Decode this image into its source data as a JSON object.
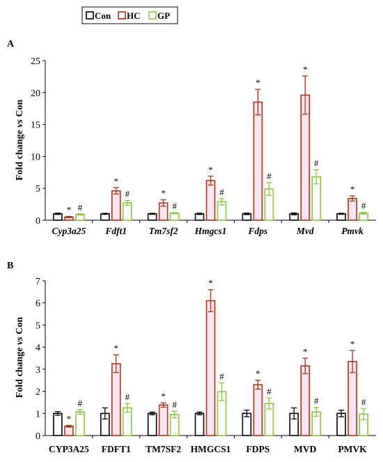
{
  "legend": {
    "items": [
      {
        "label": "Con",
        "color": "#000000"
      },
      {
        "label": "HC",
        "color": "#a0391e"
      },
      {
        "label": "GP",
        "color": "#8cc24a"
      }
    ]
  },
  "chart_data": [
    {
      "type": "bar",
      "panel_label": "A",
      "ylabel": "Fold change vs Con",
      "ylim": [
        0,
        25
      ],
      "yticks": [
        0,
        5,
        10,
        15,
        20,
        25
      ],
      "categories": [
        "Cyp3a25",
        "Fdft1",
        "Tm7sf2",
        "Hmgcs1",
        "Fdps",
        "Mvd",
        "Pmvk"
      ],
      "category_style": "italic",
      "series": [
        {
          "name": "Con",
          "values": [
            1,
            1,
            1,
            1,
            1,
            1,
            1
          ],
          "errors": [
            0.1,
            0.08,
            0.08,
            0.1,
            0.12,
            0.15,
            0.08
          ]
        },
        {
          "name": "HC",
          "values": [
            0.5,
            4.6,
            2.7,
            6.2,
            18.5,
            19.6,
            3.4
          ],
          "errors": [
            0.1,
            0.5,
            0.5,
            0.7,
            2.0,
            3.0,
            0.4
          ]
        },
        {
          "name": "GP",
          "values": [
            0.9,
            2.7,
            1.1,
            2.9,
            4.9,
            6.8,
            1.1
          ],
          "errors": [
            0.1,
            0.4,
            0.1,
            0.5,
            1.0,
            1.1,
            0.15
          ]
        }
      ],
      "annotations": [
        {
          "text": "*",
          "series": "HC",
          "category_index": 0
        },
        {
          "text": "#",
          "series": "GP",
          "category_index": 0
        },
        {
          "text": "*",
          "series": "HC",
          "category_index": 1
        },
        {
          "text": "#",
          "series": "GP",
          "category_index": 1
        },
        {
          "text": "*",
          "series": "HC",
          "category_index": 2
        },
        {
          "text": "#",
          "series": "GP",
          "category_index": 2
        },
        {
          "text": "*",
          "series": "HC",
          "category_index": 3
        },
        {
          "text": "#",
          "series": "GP",
          "category_index": 3
        },
        {
          "text": "*",
          "series": "HC",
          "category_index": 4
        },
        {
          "text": "#",
          "series": "GP",
          "category_index": 4
        },
        {
          "text": "*",
          "series": "HC",
          "category_index": 5
        },
        {
          "text": "#",
          "series": "GP",
          "category_index": 5
        },
        {
          "text": "*",
          "series": "HC",
          "category_index": 6
        },
        {
          "text": "#",
          "series": "GP",
          "category_index": 6
        }
      ]
    },
    {
      "type": "bar",
      "panel_label": "B",
      "ylabel": "Fold change vs Con",
      "ylim": [
        0,
        7
      ],
      "yticks": [
        0,
        1,
        2,
        3,
        4,
        5,
        6,
        7
      ],
      "categories": [
        "CYP3A25",
        "FDFT1",
        "TM7SF2",
        "HMGCS1",
        "FDPS",
        "MVD",
        "PMVK"
      ],
      "category_style": "normal",
      "series": [
        {
          "name": "Con",
          "values": [
            1.0,
            1.0,
            1.0,
            1.0,
            1.0,
            1.0,
            1.0
          ],
          "errors": [
            0.08,
            0.25,
            0.06,
            0.06,
            0.15,
            0.25,
            0.15
          ]
        },
        {
          "name": "HC",
          "values": [
            0.42,
            3.25,
            1.38,
            6.1,
            2.3,
            3.15,
            3.35
          ],
          "errors": [
            0.04,
            0.4,
            0.1,
            0.5,
            0.2,
            0.35,
            0.5
          ]
        },
        {
          "name": "GP",
          "values": [
            1.07,
            1.25,
            0.95,
            1.98,
            1.45,
            1.07,
            0.97
          ],
          "errors": [
            0.1,
            0.2,
            0.15,
            0.4,
            0.25,
            0.2,
            0.25
          ]
        }
      ],
      "annotations": [
        {
          "text": "*",
          "series": "HC",
          "category_index": 0
        },
        {
          "text": "#",
          "series": "GP",
          "category_index": 0
        },
        {
          "text": "*",
          "series": "HC",
          "category_index": 1
        },
        {
          "text": "#",
          "series": "GP",
          "category_index": 1
        },
        {
          "text": "*",
          "series": "HC",
          "category_index": 2
        },
        {
          "text": "#",
          "series": "GP",
          "category_index": 2
        },
        {
          "text": "*",
          "series": "HC",
          "category_index": 3
        },
        {
          "text": "#",
          "series": "GP",
          "category_index": 3
        },
        {
          "text": "*",
          "series": "HC",
          "category_index": 4
        },
        {
          "text": "#",
          "series": "GP",
          "category_index": 4
        },
        {
          "text": "*",
          "series": "HC",
          "category_index": 5
        },
        {
          "text": "#",
          "series": "GP",
          "category_index": 5
        },
        {
          "text": "*",
          "series": "HC",
          "category_index": 6
        },
        {
          "text": "#",
          "series": "GP",
          "category_index": 6
        }
      ]
    }
  ]
}
